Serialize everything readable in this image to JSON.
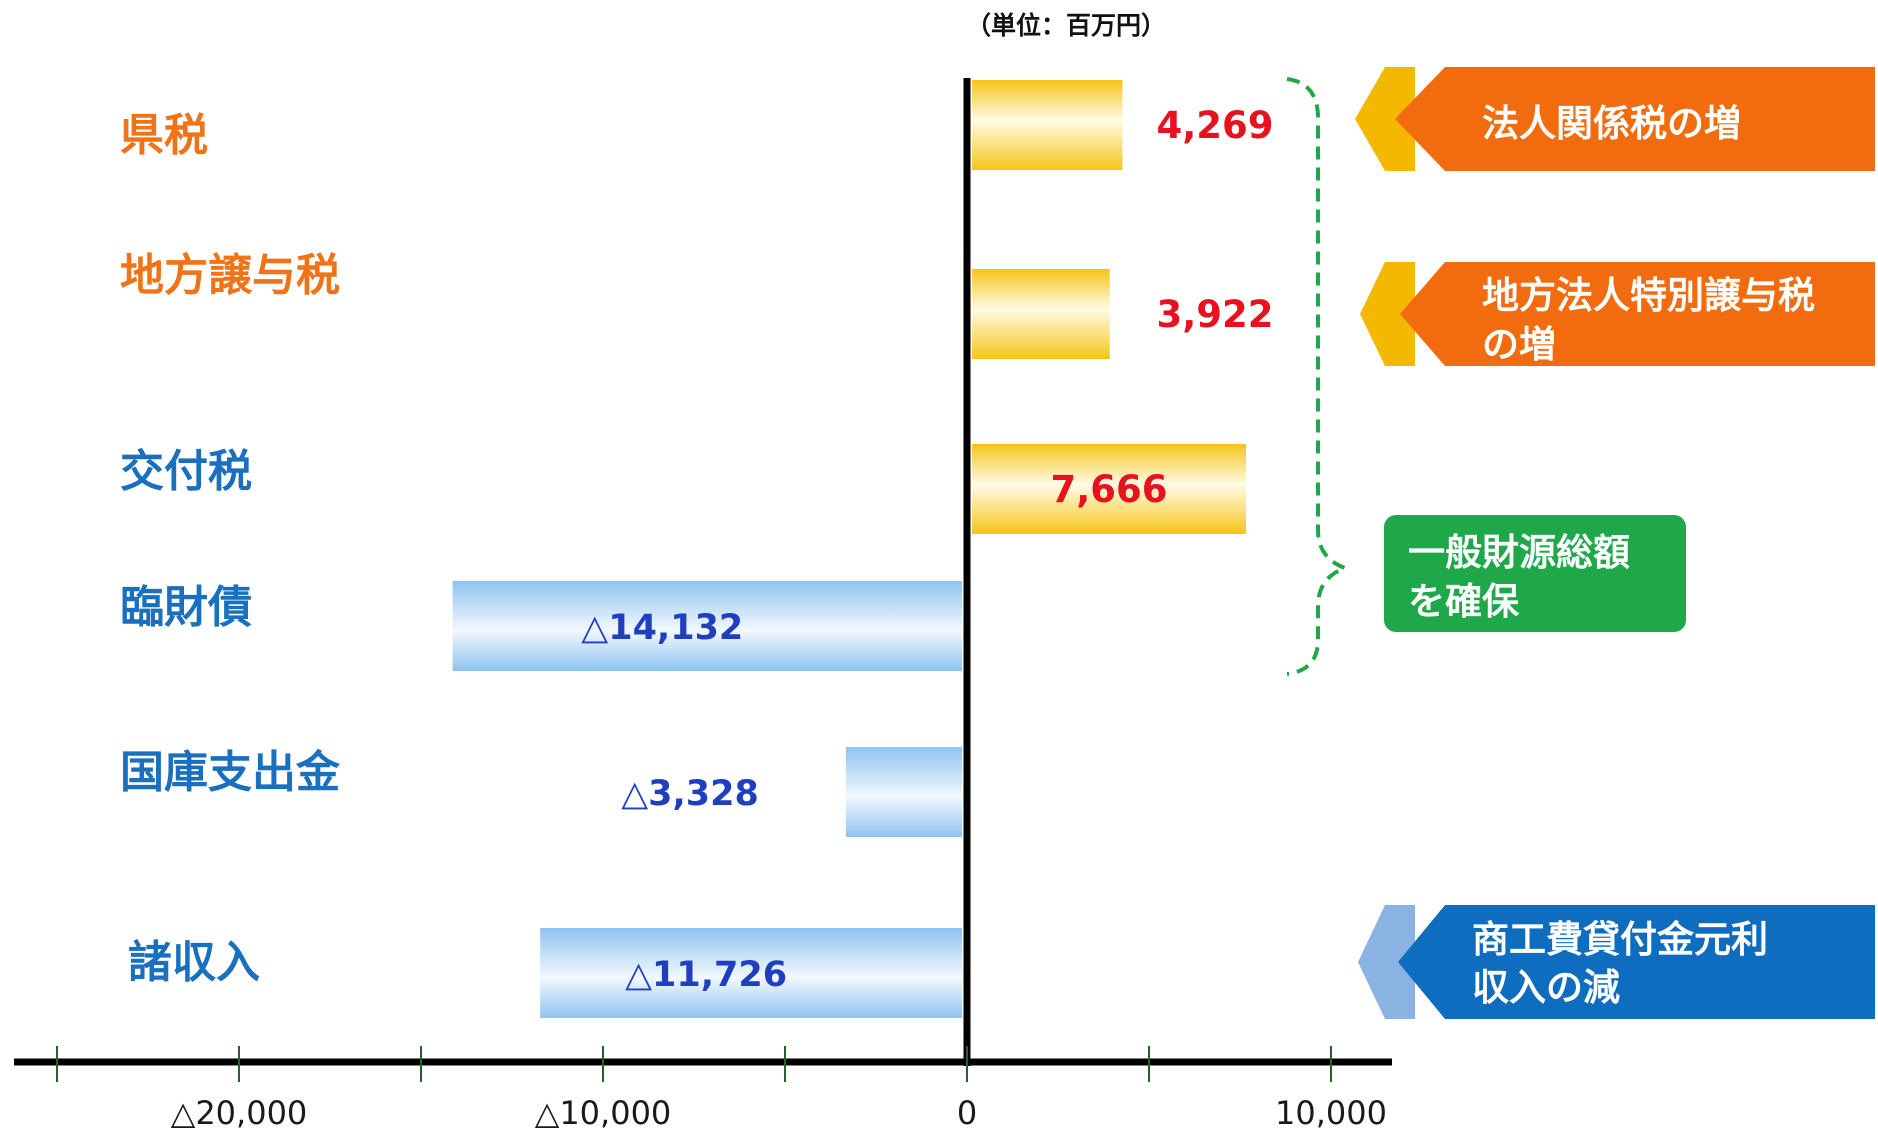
{
  "unit_label": "（単位：百万円）",
  "chart_data": {
    "type": "bar",
    "orientation": "horizontal",
    "categories": [
      "県税",
      "地方譲与税",
      "交付税",
      "臨財債",
      "国庫支出金",
      "諸収入"
    ],
    "values": [
      4269,
      3922,
      7666,
      -14132,
      -3328,
      -11726
    ],
    "value_labels": [
      "4,269",
      "3,922",
      "7,666",
      "△14,132",
      "△3,328",
      "△11,726"
    ],
    "category_colors": [
      "#f07318",
      "#f07318",
      "#1a6fbf",
      "#1a6fbf",
      "#1a6fbf",
      "#1a6fbf"
    ],
    "xlim": [
      -26000,
      11500
    ],
    "ticks": [
      {
        "value": -20000,
        "label": "△20,000"
      },
      {
        "value": -10000,
        "label": "△10,000"
      },
      {
        "value": 0,
        "label": "0"
      },
      {
        "value": 10000,
        "label": "10,000"
      }
    ],
    "minor_ticks": [
      -25000,
      -15000,
      -5000,
      5000
    ],
    "positive_color": "#f5c518",
    "negative_color": "#8fc3ef",
    "grid": false
  },
  "callouts": [
    {
      "text_lines": [
        "法人関係税の増"
      ],
      "color": "#f26b0f",
      "accent": "#f5b800"
    },
    {
      "text_lines": [
        "地方法人特別譲与税",
        "の増"
      ],
      "color": "#f26b0f",
      "accent": "#f5b800"
    },
    {
      "text_lines": [
        "一般財源総額",
        "を確保"
      ],
      "color": "#1ea84a"
    },
    {
      "text_lines": [
        "商工費貸付金元利",
        "収入の減"
      ],
      "color": "#0f6dc0",
      "accent": "#8ab2e3"
    }
  ]
}
